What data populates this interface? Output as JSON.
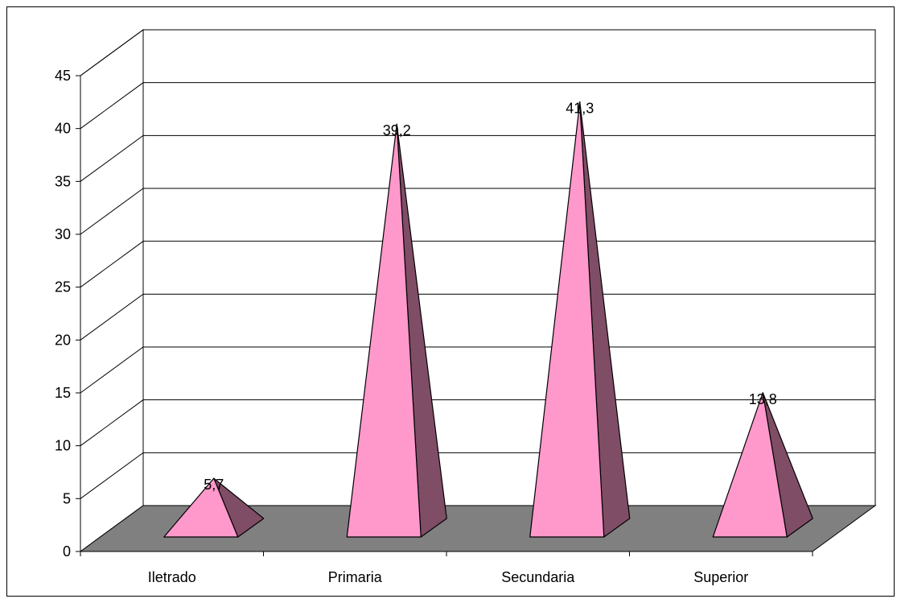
{
  "chart_data": {
    "type": "bar",
    "shape": "pyramid-3d",
    "title": "",
    "xlabel": "",
    "ylabel": "",
    "categories": [
      "Iletrado",
      "Primaria",
      "Secundaria",
      "Superior"
    ],
    "values": [
      5.7,
      39.2,
      41.3,
      13.8
    ],
    "data_labels": [
      "5,7",
      "39,2",
      "41,3",
      "13,8"
    ],
    "ylim": [
      0,
      45
    ],
    "yticks": [
      "0",
      "5",
      "10",
      "15",
      "20",
      "25",
      "30",
      "35",
      "40",
      "45"
    ],
    "grid": true,
    "legend": "none",
    "colors": {
      "front": "#ff99cc",
      "side": "#804d66",
      "floor": "#808080",
      "grid": "#000000"
    }
  }
}
